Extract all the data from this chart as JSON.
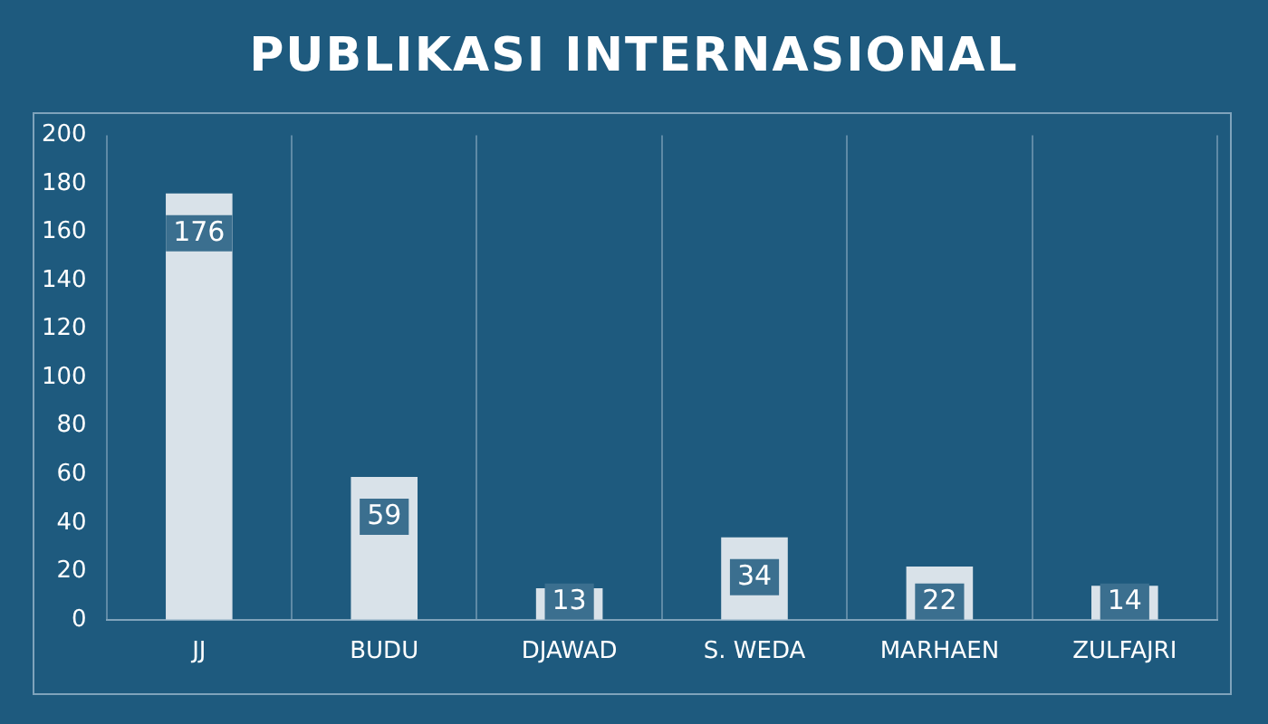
{
  "chart_data": {
    "type": "bar",
    "title": "PUBLIKASI INTERNASIONAL",
    "categories": [
      "JJ",
      "BUDU",
      "DJAWAD",
      "S. WEDA",
      "MARHAEN",
      "ZULFAJRI"
    ],
    "values": [
      176,
      59,
      13,
      34,
      22,
      14
    ],
    "color": "#d9e2e9",
    "ylim": [
      0,
      200
    ],
    "yticks": [
      0,
      20,
      40,
      60,
      80,
      100,
      120,
      140,
      160,
      180,
      200
    ],
    "grid": "x",
    "data_labels": true
  }
}
